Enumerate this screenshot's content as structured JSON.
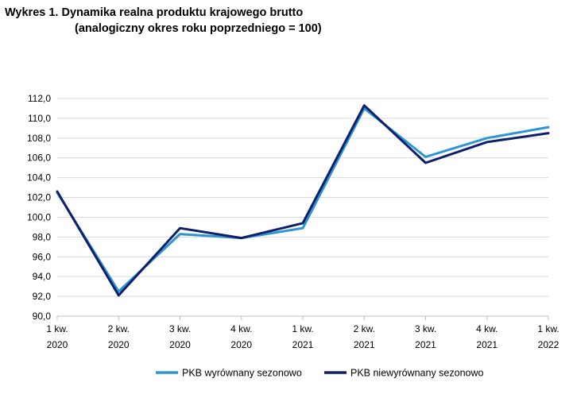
{
  "chart_data": {
    "type": "line",
    "title_line1": "Wykres 1. Dynamika realna produktu krajowego brutto",
    "title_line2": "(analogiczny okres roku poprzedniego = 100)",
    "categories": [
      [
        "1 kw.",
        "2020"
      ],
      [
        "2 kw.",
        "2020"
      ],
      [
        "3 kw.",
        "2020"
      ],
      [
        "4 kw.",
        "2020"
      ],
      [
        "1 kw.",
        "2021"
      ],
      [
        "2 kw.",
        "2021"
      ],
      [
        "3 kw.",
        "2021"
      ],
      [
        "4 kw.",
        "2021"
      ],
      [
        "1 kw.",
        "2022"
      ]
    ],
    "ylim": [
      90.0,
      112.0
    ],
    "yticks": [
      "90,0",
      "92,0",
      "94,0",
      "96,0",
      "98,0",
      "100,0",
      "102,0",
      "104,0",
      "106,0",
      "108,0",
      "110,0",
      "112,0"
    ],
    "grid": true,
    "legend_position": "bottom",
    "series": [
      {
        "name": "PKB wyrównany sezonowo",
        "color": "#2e95d3",
        "values": [
          102.5,
          92.5,
          98.3,
          97.9,
          98.9,
          111.0,
          106.1,
          108.0,
          109.1
        ]
      },
      {
        "name": "PKB niewyrównany sezonowo",
        "color": "#0d1f6b",
        "values": [
          102.6,
          92.1,
          98.9,
          97.9,
          99.4,
          111.3,
          105.5,
          107.6,
          108.5
        ]
      }
    ]
  }
}
